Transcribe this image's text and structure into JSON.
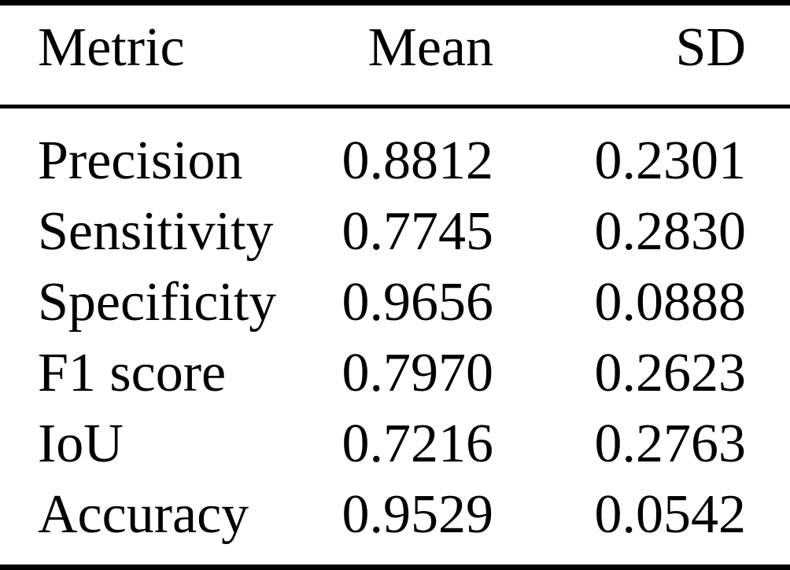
{
  "colors": {
    "background": "#ffffff",
    "text": "#000000",
    "rule": "#000000"
  },
  "chart_data": {
    "type": "table",
    "columns": [
      "Metric",
      "Mean",
      "SD"
    ],
    "rows": [
      [
        "Precision",
        "0.8812",
        "0.2301"
      ],
      [
        "Sensitivity",
        "0.7745",
        "0.2830"
      ],
      [
        "Specificity",
        "0.9656",
        "0.0888"
      ],
      [
        "F1 score",
        "0.7970",
        "0.2623"
      ],
      [
        "IoU",
        "0.7216",
        "0.2763"
      ],
      [
        "Accuracy",
        "0.9529",
        "0.0542"
      ]
    ]
  }
}
